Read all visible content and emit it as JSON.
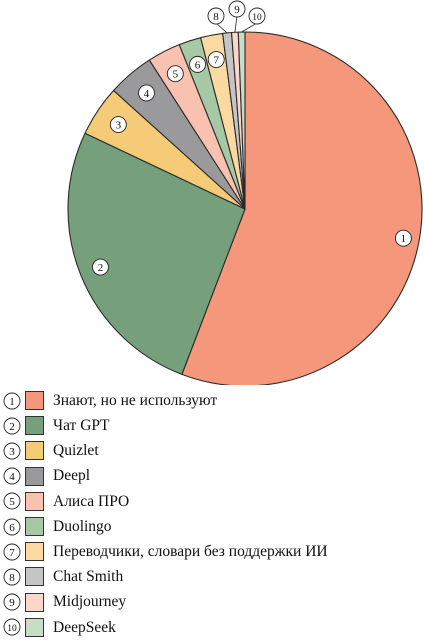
{
  "chart_data": {
    "type": "pie",
    "title": "",
    "start_angle_deg": 90,
    "direction": "clockwise",
    "categories": [
      "Знают, но не используют",
      "Чат GPT",
      "Quizlet",
      "Deepl",
      "Алиса ПРО",
      "Duolingo",
      "Переводчики, словари без поддержки ИИ",
      "Chat Smith",
      "Midjourney",
      "DeepSeek"
    ],
    "markers": [
      "1",
      "2",
      "3",
      "4",
      "5",
      "6",
      "7",
      "8",
      "9",
      "10"
    ],
    "values": [
      55.3,
      26.0,
      4.6,
      4.2,
      3.0,
      2.0,
      2.0,
      0.8,
      0.6,
      0.6
    ],
    "colors": [
      "#f4977a",
      "#76a07c",
      "#f5cb77",
      "#9a9a9d",
      "#f8c1b0",
      "#a7c8a5",
      "#fbd9a0",
      "#c5c5c5",
      "#fbd6cb",
      "#c9dcc6"
    ],
    "legend_position": "bottom"
  }
}
